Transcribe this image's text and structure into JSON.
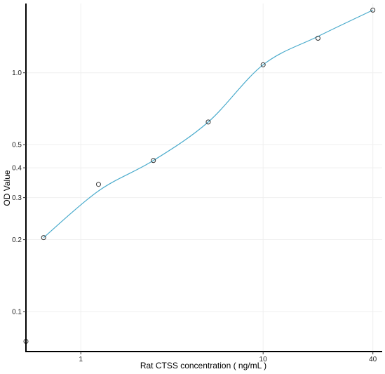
{
  "chart_data": {
    "type": "scatter",
    "title": "",
    "xlabel": "Rat CTSS concentration ( ng/mL )",
    "ylabel": "OD Value",
    "xscale": "log",
    "yscale": "log",
    "xlim": [
      0.5,
      45
    ],
    "ylim": [
      0.068,
      1.95
    ],
    "x_ticks": [
      {
        "value": 1,
        "label": "1"
      },
      {
        "value": 10,
        "label": "10"
      },
      {
        "value": 40,
        "label": "40"
      }
    ],
    "y_ticks": [
      {
        "value": 0.1,
        "label": "0.1"
      },
      {
        "value": 0.2,
        "label": "0.2"
      },
      {
        "value": 0.3,
        "label": "0.3"
      },
      {
        "value": 0.4,
        "label": "0.4"
      },
      {
        "value": 0.5,
        "label": "0.5"
      },
      {
        "value": 1.0,
        "label": "1.0"
      }
    ],
    "grid": true,
    "legend": "none",
    "series": [
      {
        "type": "scatter",
        "marker": "open-circle",
        "color": "#333333",
        "x": [
          0.5,
          0.625,
          1.25,
          2.5,
          5,
          10,
          20,
          40
        ],
        "y": [
          0.075,
          0.204,
          0.341,
          0.429,
          0.622,
          1.08,
          1.395,
          1.83
        ]
      },
      {
        "type": "line",
        "style": "smooth-fit",
        "color": "#4aabcc",
        "x": [
          0.625,
          1.25,
          2.5,
          5,
          10,
          20,
          40
        ],
        "y": [
          0.204,
          0.32,
          0.429,
          0.622,
          1.08,
          1.42,
          1.83
        ]
      }
    ]
  }
}
